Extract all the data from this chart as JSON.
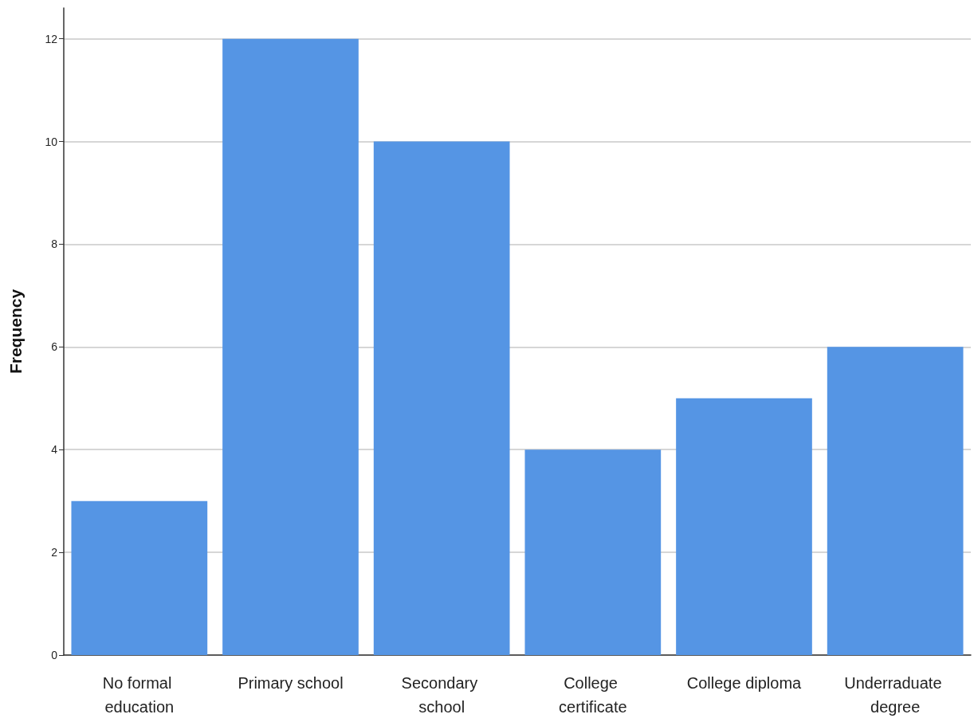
{
  "chart_data": {
    "type": "bar",
    "ylabel": "Frequency",
    "categories": [
      "No formal education",
      "Primary school",
      "Secondary school",
      "College certificate",
      "College diploma",
      "Underraduate degree"
    ],
    "values": [
      3,
      12,
      10,
      4,
      5,
      6
    ],
    "color": "#5595e4",
    "ylim": [
      0,
      12.6
    ],
    "yticks": [
      0,
      2,
      4,
      6,
      8,
      10,
      12
    ],
    "grid": "y"
  }
}
